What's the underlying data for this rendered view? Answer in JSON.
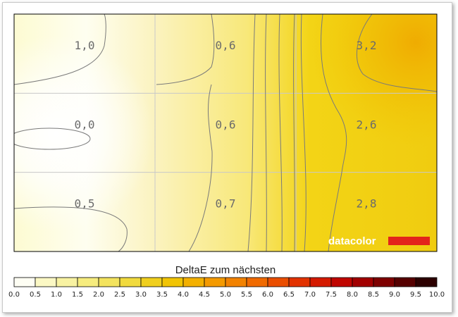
{
  "chart_data": {
    "type": "heatmap",
    "rows": 3,
    "cols": 3,
    "values": [
      [
        "1,0",
        "0,6",
        "3,2"
      ],
      [
        "0,0",
        "0,6",
        "2,6"
      ],
      [
        "0,5",
        "0,7",
        "2,8"
      ]
    ],
    "numeric_values": [
      [
        1.0,
        0.6,
        3.2
      ],
      [
        0.0,
        0.6,
        2.6
      ],
      [
        0.5,
        0.7,
        2.8
      ]
    ],
    "legend_title": "DeltaE zum nächsten",
    "scale_ticks": [
      "0.0",
      "0.5",
      "1.0",
      "1.5",
      "2.0",
      "2.5",
      "3.0",
      "3.5",
      "4.0",
      "4.5",
      "5.0",
      "5.5",
      "6.0",
      "6.5",
      "7.0",
      "7.5",
      "8.0",
      "8.5",
      "9.0",
      "9.5",
      "10.0"
    ],
    "scale_colors": [
      "#fefef4",
      "#fbf8c4",
      "#f8f2a2",
      "#f6ec7e",
      "#f3e35e",
      "#f1da3e",
      "#f0cf1e",
      "#f1c404",
      "#f3b000",
      "#f49a00",
      "#f28200",
      "#f06a00",
      "#ea4e00",
      "#e23200",
      "#d41a00",
      "#c00600",
      "#a20000",
      "#7e0000",
      "#560000",
      "#2c0000"
    ],
    "grid": true
  },
  "brand": {
    "text": "datacolor",
    "bar_color": "#e3241b"
  },
  "colors": {
    "grid_line": "#c8c8c8",
    "contour_line": "#7a7a7a",
    "plot_border": "#000000"
  }
}
